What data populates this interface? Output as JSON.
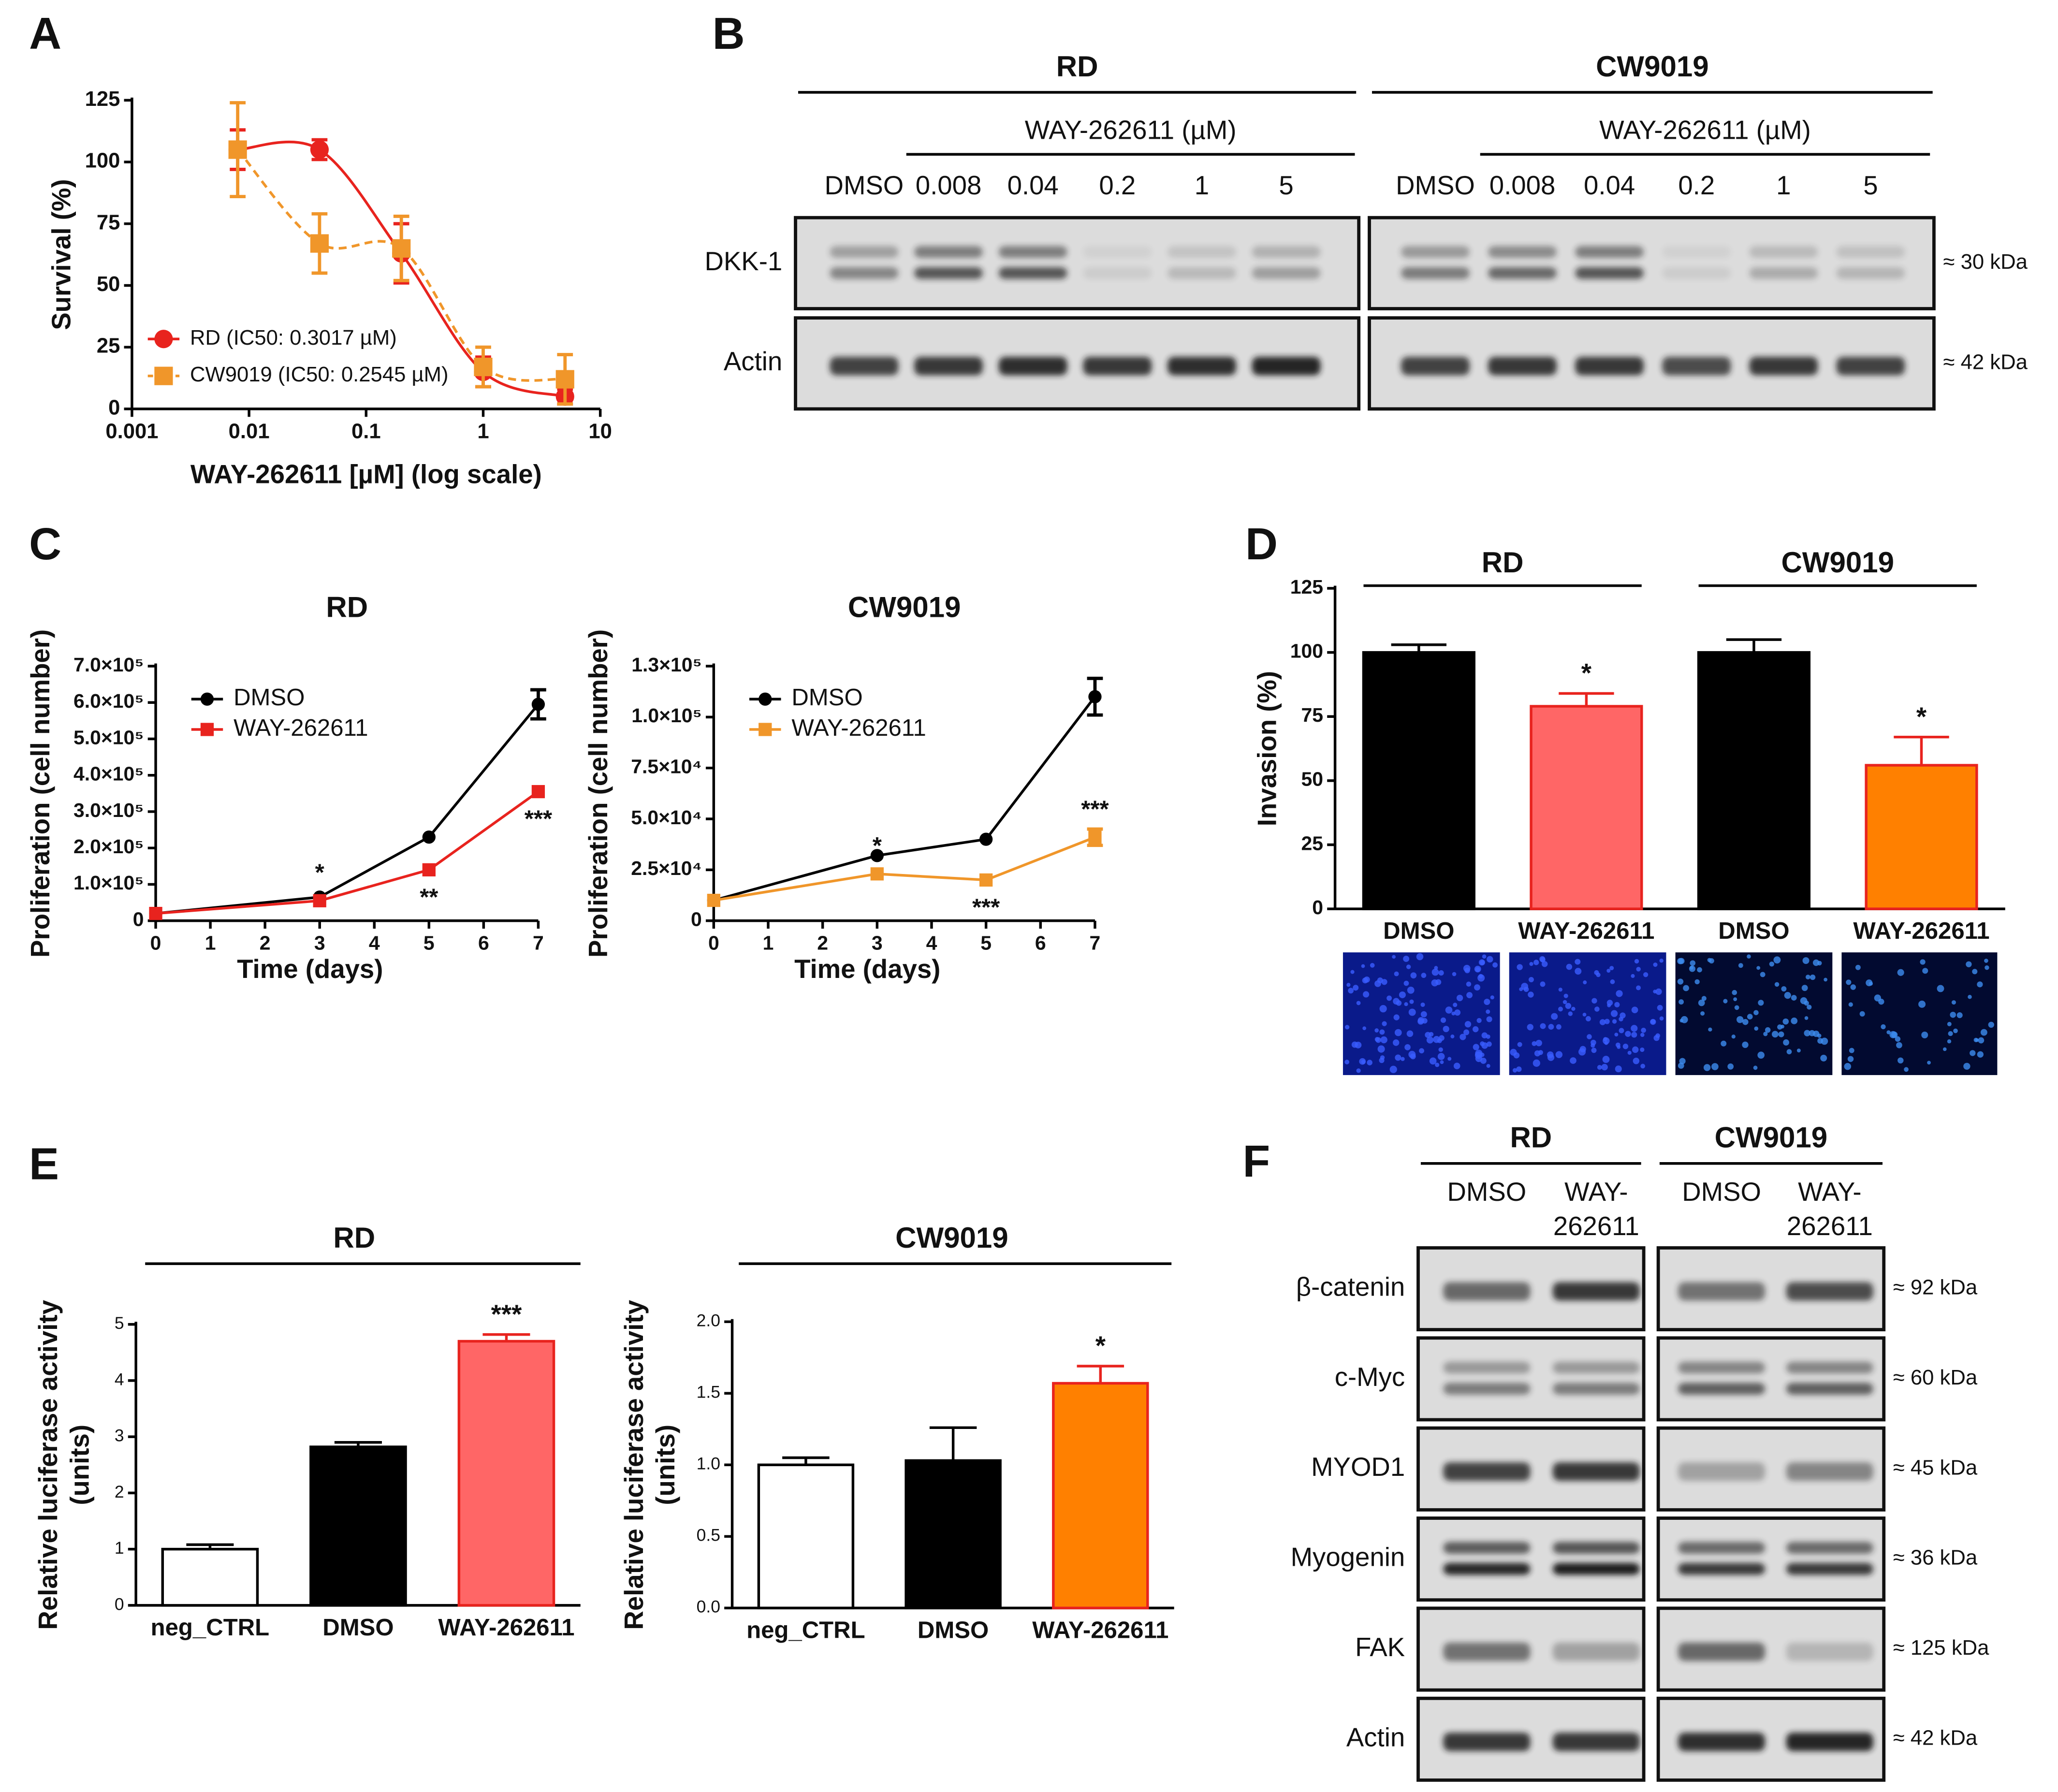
{
  "panels": [
    "A",
    "B",
    "C",
    "D",
    "E",
    "F"
  ],
  "chart_data": [
    {
      "type": "line",
      "xscale": "log",
      "smooth": true,
      "xlabel": "WAY-262611 [µM] (log scale)",
      "ylabel": "Survival (%)",
      "xlim": [
        0.001,
        10
      ],
      "xticks": [
        0.001,
        0.01,
        0.1,
        1,
        10
      ],
      "ylim": [
        0,
        125
      ],
      "yticks": [
        0,
        25,
        50,
        75,
        100,
        125
      ],
      "legend": "lower left",
      "series": [
        {
          "name": "RD (IC50: 0.3017 µM)",
          "color": "#e8231e",
          "marker": "circle",
          "line": "solid",
          "x": [
            0.008,
            0.04,
            0.2,
            1,
            5
          ],
          "values": [
            105,
            105,
            63,
            15,
            5
          ],
          "errors": [
            8,
            4,
            12,
            6,
            3
          ]
        },
        {
          "name": "CW9019 (IC50: 0.2545 µM)",
          "color": "#f0962a",
          "marker": "square",
          "line": "dashed",
          "x": [
            0.008,
            0.04,
            0.2,
            1,
            5
          ],
          "values": [
            105,
            67,
            65,
            17,
            12
          ],
          "errors": [
            19,
            12,
            13,
            8,
            10
          ]
        }
      ]
    },
    {
      "type": "line",
      "title": "RD",
      "xlabel": "Time (days)",
      "ylabel": "Proliferation (cell number)",
      "xlim": [
        0,
        7
      ],
      "xticks": [
        0,
        1,
        2,
        3,
        4,
        5,
        6,
        7
      ],
      "ylim": [
        0,
        700000
      ],
      "yticks": [
        0,
        {
          "value": 100000,
          "label": "1.0×10⁵"
        },
        {
          "value": 200000,
          "label": "2.0×10⁵"
        },
        {
          "value": 300000,
          "label": "3.0×10⁵"
        },
        {
          "value": 400000,
          "label": "4.0×10⁵"
        },
        {
          "value": 500000,
          "label": "5.0×10⁵"
        },
        {
          "value": 600000,
          "label": "6.0×10⁵"
        },
        {
          "value": 700000,
          "label": "7.0×10⁵"
        }
      ],
      "legend": "upper left",
      "series": [
        {
          "name": "DMSO",
          "color": "#000000",
          "marker": "circle",
          "line": "solid",
          "x": [
            0,
            3,
            5,
            7
          ],
          "values": [
            20000,
            65000,
            230000,
            595000
          ],
          "errors": [
            null,
            null,
            null,
            40000
          ]
        },
        {
          "name": "WAY-262611",
          "color": "#e8231e",
          "marker": "square",
          "line": "solid",
          "x": [
            0,
            3,
            5,
            7
          ],
          "values": [
            20000,
            55000,
            140000,
            355000
          ],
          "errors": [
            null,
            null,
            null,
            null
          ]
        }
      ],
      "annotations": [
        {
          "text": "*",
          "x": 3,
          "series": 1,
          "position": "above"
        },
        {
          "text": "**",
          "x": 5,
          "series": 1,
          "position": "below"
        },
        {
          "text": "***",
          "x": 7,
          "series": 1,
          "position": "below"
        }
      ]
    },
    {
      "type": "line",
      "title": "CW9019",
      "xlabel": "Time (days)",
      "ylabel": "Proliferation (cell number)",
      "xlim": [
        0,
        7
      ],
      "xticks": [
        0,
        1,
        2,
        3,
        4,
        5,
        6,
        7
      ],
      "ylim": [
        0,
        125000
      ],
      "yticks": [
        0,
        {
          "value": 25000,
          "label": "2.5×10⁴"
        },
        {
          "value": 50000,
          "label": "5.0×10⁴"
        },
        {
          "value": 75000,
          "label": "7.5×10⁴"
        },
        {
          "value": 100000,
          "label": "1.0×10⁵"
        },
        {
          "value": 125000,
          "label": "1.3×10⁵"
        }
      ],
      "legend": "upper left",
      "series": [
        {
          "name": "DMSO",
          "color": "#000000",
          "marker": "circle",
          "line": "solid",
          "x": [
            0,
            3,
            5,
            7
          ],
          "values": [
            10000,
            32000,
            40000,
            110000
          ],
          "errors": [
            null,
            null,
            null,
            9000
          ]
        },
        {
          "name": "WAY-262611",
          "color": "#f0962a",
          "marker": "square",
          "line": "solid",
          "x": [
            0,
            3,
            5,
            7
          ],
          "values": [
            10000,
            23000,
            20000,
            41000
          ],
          "errors": [
            null,
            null,
            null,
            4000
          ]
        }
      ],
      "annotations": [
        {
          "text": "*",
          "x": 3,
          "series": 1,
          "position": "above"
        },
        {
          "text": "***",
          "x": 5,
          "series": 1,
          "position": "below"
        },
        {
          "text": "***",
          "x": 7,
          "series": 1,
          "position": "above"
        }
      ]
    },
    {
      "type": "bar",
      "ylabel": "Invasion (%)",
      "groups": [
        "RD",
        "CW9019"
      ],
      "categories": [
        "DMSO",
        "WAY-262611",
        "DMSO",
        "WAY-262611"
      ],
      "values": [
        100,
        79,
        100,
        56
      ],
      "errors": [
        3,
        5,
        5,
        11
      ],
      "colors": [
        "#000000",
        "#ff6666",
        "#000000",
        "#ff8000"
      ],
      "edgecolors": [
        "#000000",
        "#e8231e",
        "#000000",
        "#e8231e"
      ],
      "ylim": [
        0,
        125
      ],
      "yticks": [
        0,
        25,
        50,
        75,
        100,
        125
      ],
      "annotations": [
        {
          "text": "*",
          "index": 1
        },
        {
          "text": "*",
          "index": 3
        }
      ]
    },
    {
      "type": "bar",
      "title": "RD",
      "ylabel": [
        "Relative luciferase activity",
        "(units)"
      ],
      "categories": [
        "neg_CTRL",
        "DMSO",
        "WAY-262611"
      ],
      "values": [
        1.0,
        2.82,
        4.7
      ],
      "errors": [
        0.08,
        0.08,
        0.12
      ],
      "colors": [
        "#ffffff",
        "#000000",
        "#ff6666"
      ],
      "edgecolors": [
        "#000000",
        "#000000",
        "#e8231e"
      ],
      "ylim": [
        0,
        5
      ],
      "yticks": [
        0,
        1,
        2,
        3,
        4,
        5
      ],
      "annotations": [
        {
          "text": "***",
          "index": 2
        }
      ]
    },
    {
      "type": "bar",
      "title": "CW9019",
      "ylabel": [
        "Relative luciferase activity",
        "(units)"
      ],
      "categories": [
        "neg_CTRL",
        "DMSO",
        "WAY-262611"
      ],
      "values": [
        1.0,
        1.03,
        1.57
      ],
      "errors": [
        0.05,
        0.23,
        0.12
      ],
      "colors": [
        "#ffffff",
        "#000000",
        "#ff8000"
      ],
      "edgecolors": [
        "#000000",
        "#000000",
        "#e8231e"
      ],
      "ylim": [
        0,
        2
      ],
      "yticks": [
        {
          "value": 0,
          "label": "0.0"
        },
        {
          "value": 0.5,
          "label": "0.5"
        },
        {
          "value": 1,
          "label": "1.0"
        },
        {
          "value": 1.5,
          "label": "1.5"
        },
        {
          "value": 2,
          "label": "2.0"
        }
      ],
      "annotations": [
        {
          "text": "*",
          "index": 2
        }
      ]
    }
  ],
  "blots": [
    {
      "groups": [
        {
          "name": "RD",
          "treatment": "WAY-262611 (µM)",
          "lanes": [
            [
              "DMSO"
            ],
            [
              "0.008"
            ],
            [
              "0.04"
            ],
            [
              "0.2"
            ],
            [
              "1"
            ],
            [
              "5"
            ]
          ]
        },
        {
          "name": "CW9019",
          "treatment": "WAY-262611 (µM)",
          "lanes": [
            [
              "DMSO"
            ],
            [
              "0.008"
            ],
            [
              "0.04"
            ],
            [
              "0.2"
            ],
            [
              "1"
            ],
            [
              "5"
            ]
          ]
        }
      ],
      "rows": [
        {
          "name": "DKK-1",
          "size": "≈ 30 kDa"
        },
        {
          "name": "Actin",
          "size": "≈ 42 kDa"
        }
      ]
    },
    {
      "groups": [
        {
          "name": "RD",
          "lanes": [
            [
              "DMSO"
            ],
            [
              "WAY-",
              "262611"
            ]
          ]
        },
        {
          "name": "CW9019",
          "lanes": [
            [
              "DMSO"
            ],
            [
              "WAY-",
              "262611"
            ]
          ]
        }
      ],
      "rows": [
        {
          "name": "β-catenin",
          "size": "≈ 92 kDa"
        },
        {
          "name": "c-Myc",
          "size": "≈ 60 kDa"
        },
        {
          "name": "MYOD1",
          "size": "≈ 45 kDa"
        },
        {
          "name": "Myogenin",
          "size": "≈ 36 kDa"
        },
        {
          "name": "FAK",
          "size": "≈ 125 kDa"
        },
        {
          "name": "Actin",
          "size": "≈ 42 kDa"
        }
      ]
    }
  ]
}
